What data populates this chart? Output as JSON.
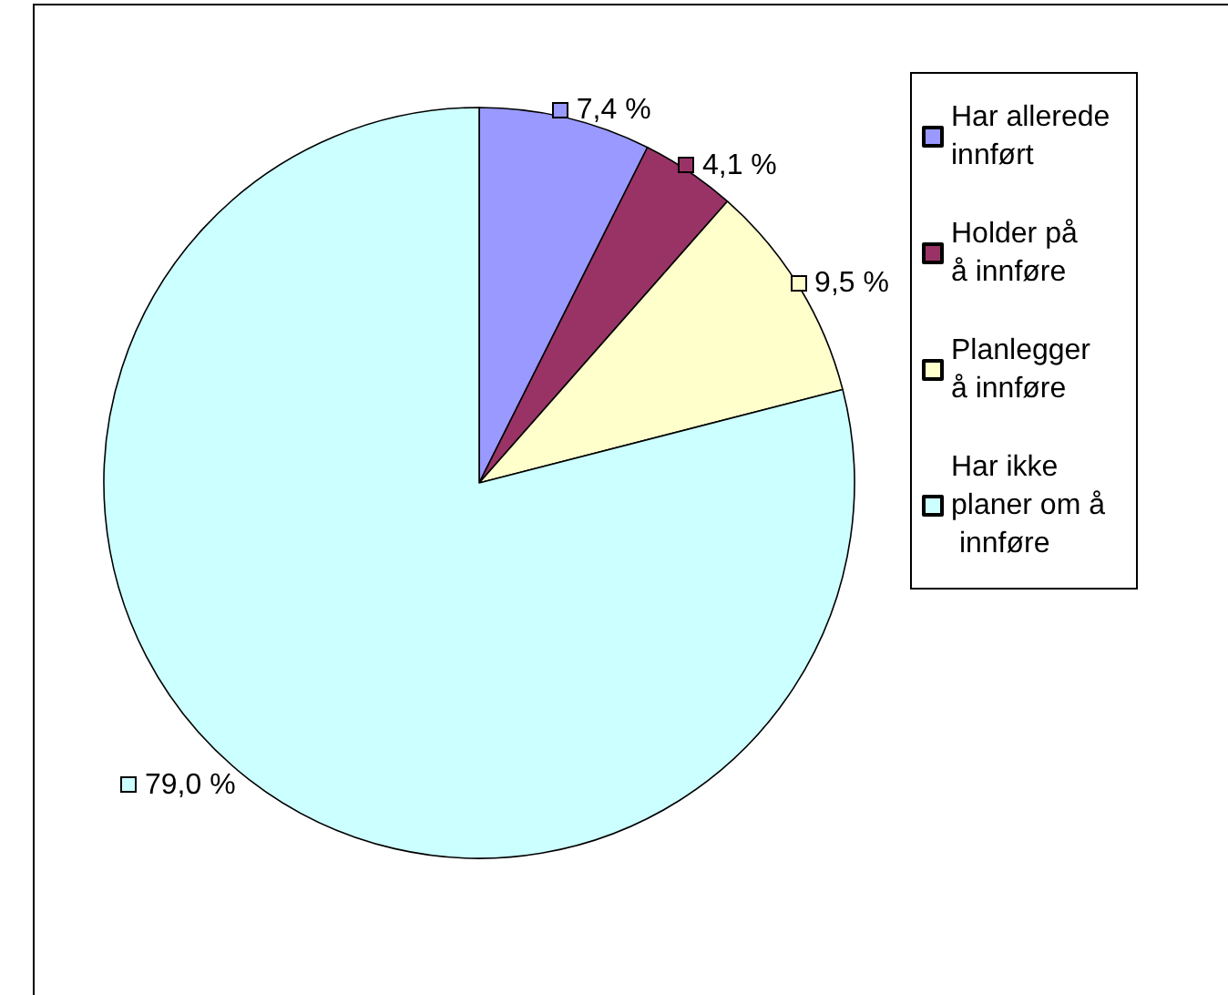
{
  "chart_data": {
    "type": "pie",
    "categories": [
      "Har allerede innført",
      "Holder på å innføre",
      "Planlegger å innføre",
      "Har ikke planer om å innføre"
    ],
    "values": [
      7.4,
      4.1,
      9.5,
      79.0
    ],
    "colors": [
      "#9999ff",
      "#993366",
      "#ffffcc",
      "#ccffff"
    ],
    "value_labels": [
      "7,4 %",
      "4,1 %",
      "9,5 %",
      "79,0 %"
    ],
    "legend": "right"
  }
}
